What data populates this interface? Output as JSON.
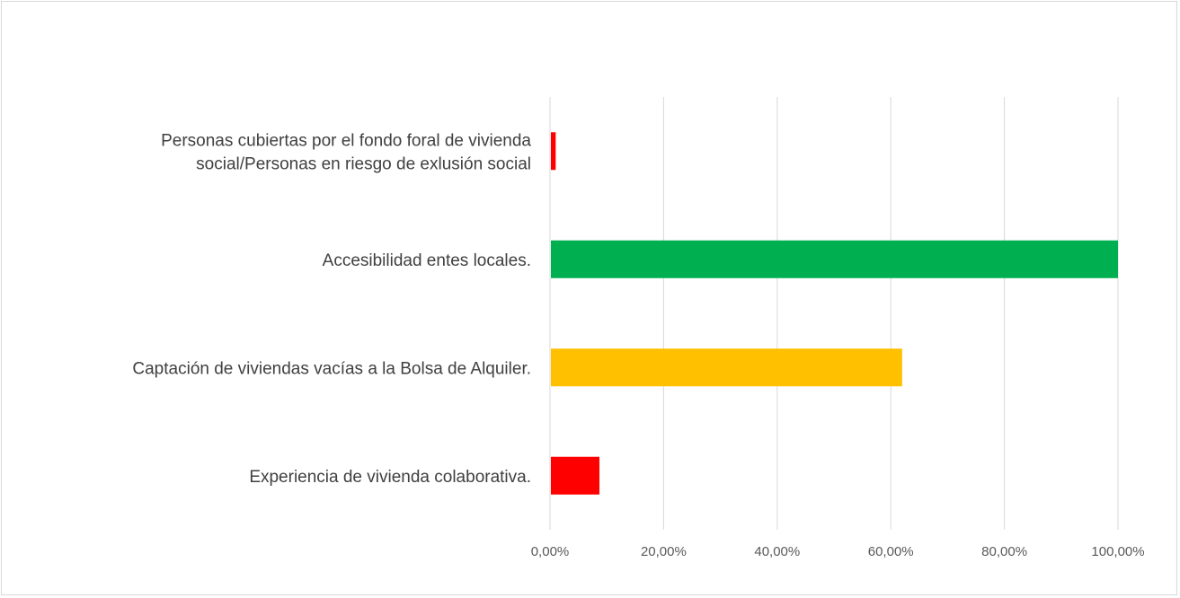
{
  "chart_data": {
    "type": "bar",
    "orientation": "horizontal",
    "title": "",
    "xlabel": "",
    "ylabel": "",
    "categories": [
      [
        "Personas cubiertas por el fondo foral de vivienda",
        "social/Personas en riesgo de exlusión social"
      ],
      [
        "Accesibilidad entes locales."
      ],
      [
        "Captación de viviendas vacías a la Bolsa de Alquiler."
      ],
      [
        "Experiencia de vivienda colaborativa."
      ]
    ],
    "values": [
      0.01,
      1.0,
      0.62,
      0.087
    ],
    "colors": [
      "#ff0000",
      "#00b050",
      "#ffc000",
      "#ff0000"
    ],
    "xlim": [
      0,
      1.0
    ],
    "ticks": [
      0,
      0.2,
      0.4,
      0.6,
      0.8,
      1.0
    ],
    "tick_labels": [
      "0,00%",
      "20,00%",
      "40,00%",
      "60,00%",
      "80,00%",
      "100,00%"
    ],
    "grid": true,
    "legend": "none"
  }
}
